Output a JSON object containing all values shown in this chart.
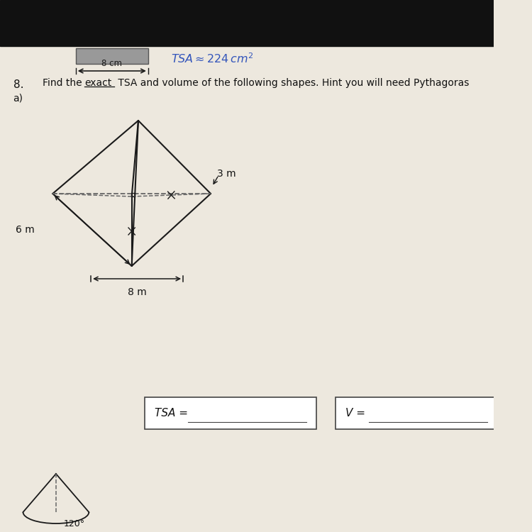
{
  "paper_color": "#ede8de",
  "top_black": "#111111",
  "shape_color": "#1a1a1a",
  "dashed_color": "#666666",
  "blue_color": "#3355bb",
  "question_num": "8.",
  "sub_label": "a)",
  "dim_6m": "6 m",
  "dim_3m": "3 m",
  "dim_8m": "8 m",
  "tsa_label": "TSA = ",
  "v_label": "V = ",
  "prev_8cm": "8 cm",
  "angle_label": "120°"
}
